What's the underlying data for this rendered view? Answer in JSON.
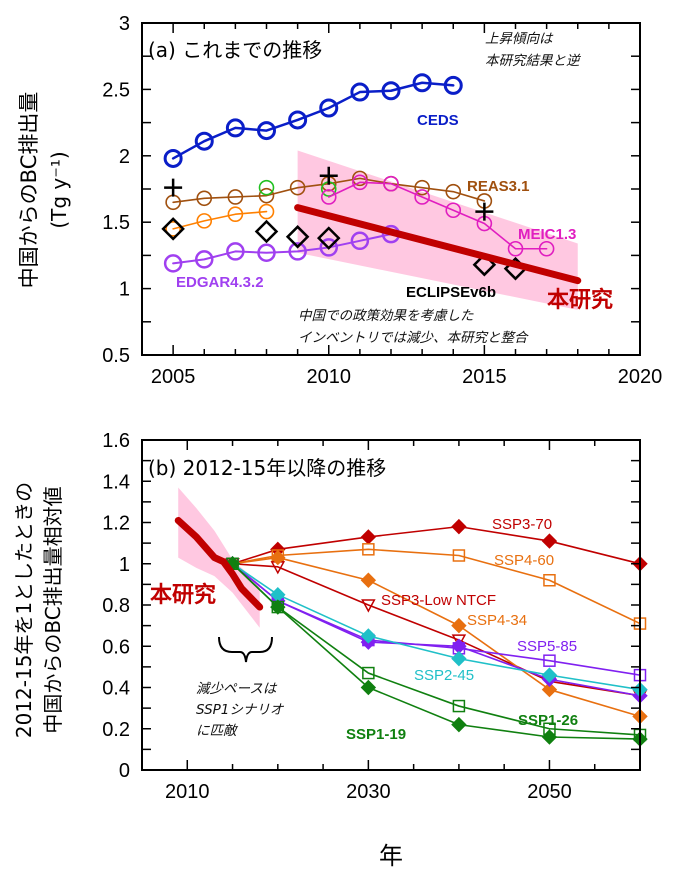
{
  "chart_data": [
    {
      "type": "line",
      "panel_title": "(a)  これまでの推移",
      "ylabel": "中国からのBC排出量",
      "ylabel_unit": "(Tg y⁻¹)",
      "xlim": [
        2004,
        2020
      ],
      "ylim": [
        0.5,
        3
      ],
      "xticks": [
        2005,
        2010,
        2015,
        2020
      ],
      "yticks": [
        "0.5",
        "1",
        "1.5",
        "2",
        "2.5",
        "3"
      ],
      "grid": false,
      "series": [
        {
          "name": "CEDS",
          "color": "#0a1ec8",
          "marker": "open-circle",
          "x": [
            2005,
            2006,
            2007,
            2008,
            2009,
            2010,
            2011,
            2012,
            2013,
            2014
          ],
          "y": [
            1.98,
            2.11,
            2.21,
            2.19,
            2.27,
            2.36,
            2.48,
            2.49,
            2.55,
            2.53
          ]
        },
        {
          "name": "REAS3.1",
          "color": "#a0500f",
          "marker": "open-circle",
          "x": [
            2005,
            2006,
            2007,
            2008,
            2009,
            2010,
            2011,
            2012,
            2013,
            2014,
            2015
          ],
          "y": [
            1.65,
            1.68,
            1.69,
            1.7,
            1.76,
            1.79,
            1.83,
            1.79,
            1.76,
            1.73,
            1.66
          ]
        },
        {
          "color": "#ff8000",
          "marker": "open-circle",
          "x": [
            2005,
            2006,
            2007,
            2008
          ],
          "y": [
            1.45,
            1.51,
            1.56,
            1.58
          ]
        },
        {
          "color": "#20c020",
          "marker": "open-circle",
          "noline": true,
          "x": [
            2008,
            2010
          ],
          "y": [
            1.76,
            1.75
          ]
        },
        {
          "name": "MEIC1.3",
          "color": "#e01ec0",
          "marker": "open-circle",
          "x": [
            2010,
            2011,
            2012,
            2013,
            2014,
            2015,
            2016,
            2017
          ],
          "y": [
            1.69,
            1.8,
            1.79,
            1.69,
            1.59,
            1.49,
            1.3,
            1.3
          ]
        },
        {
          "name": "EDGAR4.3.2",
          "color": "#a040f0",
          "marker": "open-circle",
          "x": [
            2005,
            2006,
            2007,
            2008,
            2009,
            2010,
            2011,
            2012
          ],
          "y": [
            1.19,
            1.22,
            1.28,
            1.27,
            1.28,
            1.31,
            1.36,
            1.41
          ]
        },
        {
          "name": "ECLIPSEv6b",
          "color": "#000000",
          "marker": "open-diamond",
          "noline": true,
          "x": [
            2005,
            2008,
            2009,
            2010,
            2015,
            2016
          ],
          "y": [
            1.45,
            1.43,
            1.39,
            1.38,
            1.18,
            1.15
          ]
        },
        {
          "color": "#000000",
          "marker": "plus",
          "noline": true,
          "x": [
            2005,
            2010,
            2015
          ],
          "y": [
            1.76,
            1.85,
            1.58
          ]
        },
        {
          "name": "本研究",
          "color": "#c00000",
          "marker": "none",
          "thick": true,
          "x": [
            2009,
            2018
          ],
          "y": [
            1.61,
            1.06
          ],
          "band": {
            "color": "#ffc8e1",
            "x": [
              2009,
              2018
            ],
            "upper": [
              2.04,
              1.34
            ],
            "lower": [
              1.27,
              0.84
            ]
          }
        }
      ],
      "annotations": {
        "trend_note_1": "上昇傾向は",
        "trend_note_2": "本研究結果と逆",
        "policy_note_1": "中国での政策効果を考慮した",
        "policy_note_2": "インベントリでは減少、本研究と整合"
      }
    },
    {
      "type": "line",
      "panel_title": "(b)  2012-15年以降の推移",
      "ylabel_line1": "2012-15年を1としたときの",
      "ylabel_line2": "中国からのBC排出量相対値",
      "xlabel": "年",
      "xlim": [
        2005,
        2060
      ],
      "ylim": [
        0,
        1.6
      ],
      "xticks": [
        2010,
        2030,
        2050
      ],
      "yticks": [
        "0",
        "0.2",
        "0.4",
        "0.6",
        "0.8",
        "1",
        "1.2",
        "1.4",
        "1.6"
      ],
      "grid": false,
      "series": [
        {
          "name": "SSP3-70",
          "color": "#c00000",
          "marker": "filled-diamond",
          "x": [
            2015,
            2020,
            2030,
            2040,
            2050,
            2060
          ],
          "y": [
            1.0,
            1.07,
            1.13,
            1.18,
            1.11,
            1.0
          ]
        },
        {
          "name": "SSP4-60",
          "color": "#e87010",
          "marker": "open-square",
          "x": [
            2015,
            2020,
            2030,
            2040,
            2050,
            2060
          ],
          "y": [
            1.0,
            1.04,
            1.07,
            1.04,
            0.92,
            0.71
          ]
        },
        {
          "name": "SSP3-Low NTCF",
          "color": "#c00000",
          "marker": "open-triangle-down",
          "x": [
            2015,
            2020,
            2030,
            2040,
            2050,
            2060
          ],
          "y": [
            1.0,
            0.985,
            0.8,
            0.63,
            0.43,
            0.36
          ]
        },
        {
          "name": "SSP4-34",
          "color": "#e87010",
          "marker": "filled-diamond",
          "x": [
            2015,
            2020,
            2030,
            2040,
            2050,
            2060
          ],
          "y": [
            1.0,
            1.03,
            0.92,
            0.7,
            0.39,
            0.26
          ]
        },
        {
          "name": "SSP5-85",
          "color": "#8020f0",
          "marker": "open-square",
          "x": [
            2015,
            2020,
            2030,
            2040,
            2050,
            2060
          ],
          "y": [
            1.0,
            0.82,
            0.63,
            0.59,
            0.53,
            0.46
          ]
        },
        {
          "color": "#8020f0",
          "marker": "filled-diamond",
          "x": [
            2015,
            2020,
            2030,
            2040,
            2050,
            2060
          ],
          "y": [
            1.0,
            0.82,
            0.62,
            0.6,
            0.44,
            0.36
          ]
        },
        {
          "name": "SSP2-45",
          "color": "#20c0c8",
          "marker": "filled-diamond",
          "x": [
            2015,
            2020,
            2030,
            2040,
            2050,
            2060
          ],
          "y": [
            1.0,
            0.85,
            0.65,
            0.54,
            0.46,
            0.39
          ]
        },
        {
          "name": "SSP1-26",
          "color": "#108010",
          "marker": "open-square",
          "x": [
            2015,
            2020,
            2030,
            2040,
            2050,
            2060
          ],
          "y": [
            1.0,
            0.79,
            0.47,
            0.31,
            0.2,
            0.17
          ]
        },
        {
          "name": "SSP1-19",
          "color": "#108010",
          "marker": "filled-diamond",
          "x": [
            2015,
            2020,
            2030,
            2040,
            2050,
            2060
          ],
          "y": [
            1.0,
            0.79,
            0.4,
            0.22,
            0.16,
            0.15
          ]
        },
        {
          "name": "本研究",
          "color": "#c00000",
          "marker": "none",
          "thick": true,
          "x": [
            2009,
            2011,
            2013,
            2014,
            2015,
            2016,
            2018
          ],
          "y": [
            1.21,
            1.13,
            1.03,
            1.01,
            0.95,
            0.88,
            0.79
          ],
          "band": {
            "color": "#ffc8e1",
            "x": [
              2009,
              2011,
              2013,
              2015,
              2018
            ],
            "upper": [
              1.37,
              1.27,
              1.16,
              1.02,
              0.9
            ],
            "lower": [
              1.03,
              0.98,
              0.94,
              0.86,
              0.69
            ]
          }
        }
      ],
      "annotations": {
        "pace_note_1": "減少ペースは",
        "pace_note_2": "SSP1シナリオ",
        "pace_note_3": "に匹敵"
      }
    }
  ]
}
